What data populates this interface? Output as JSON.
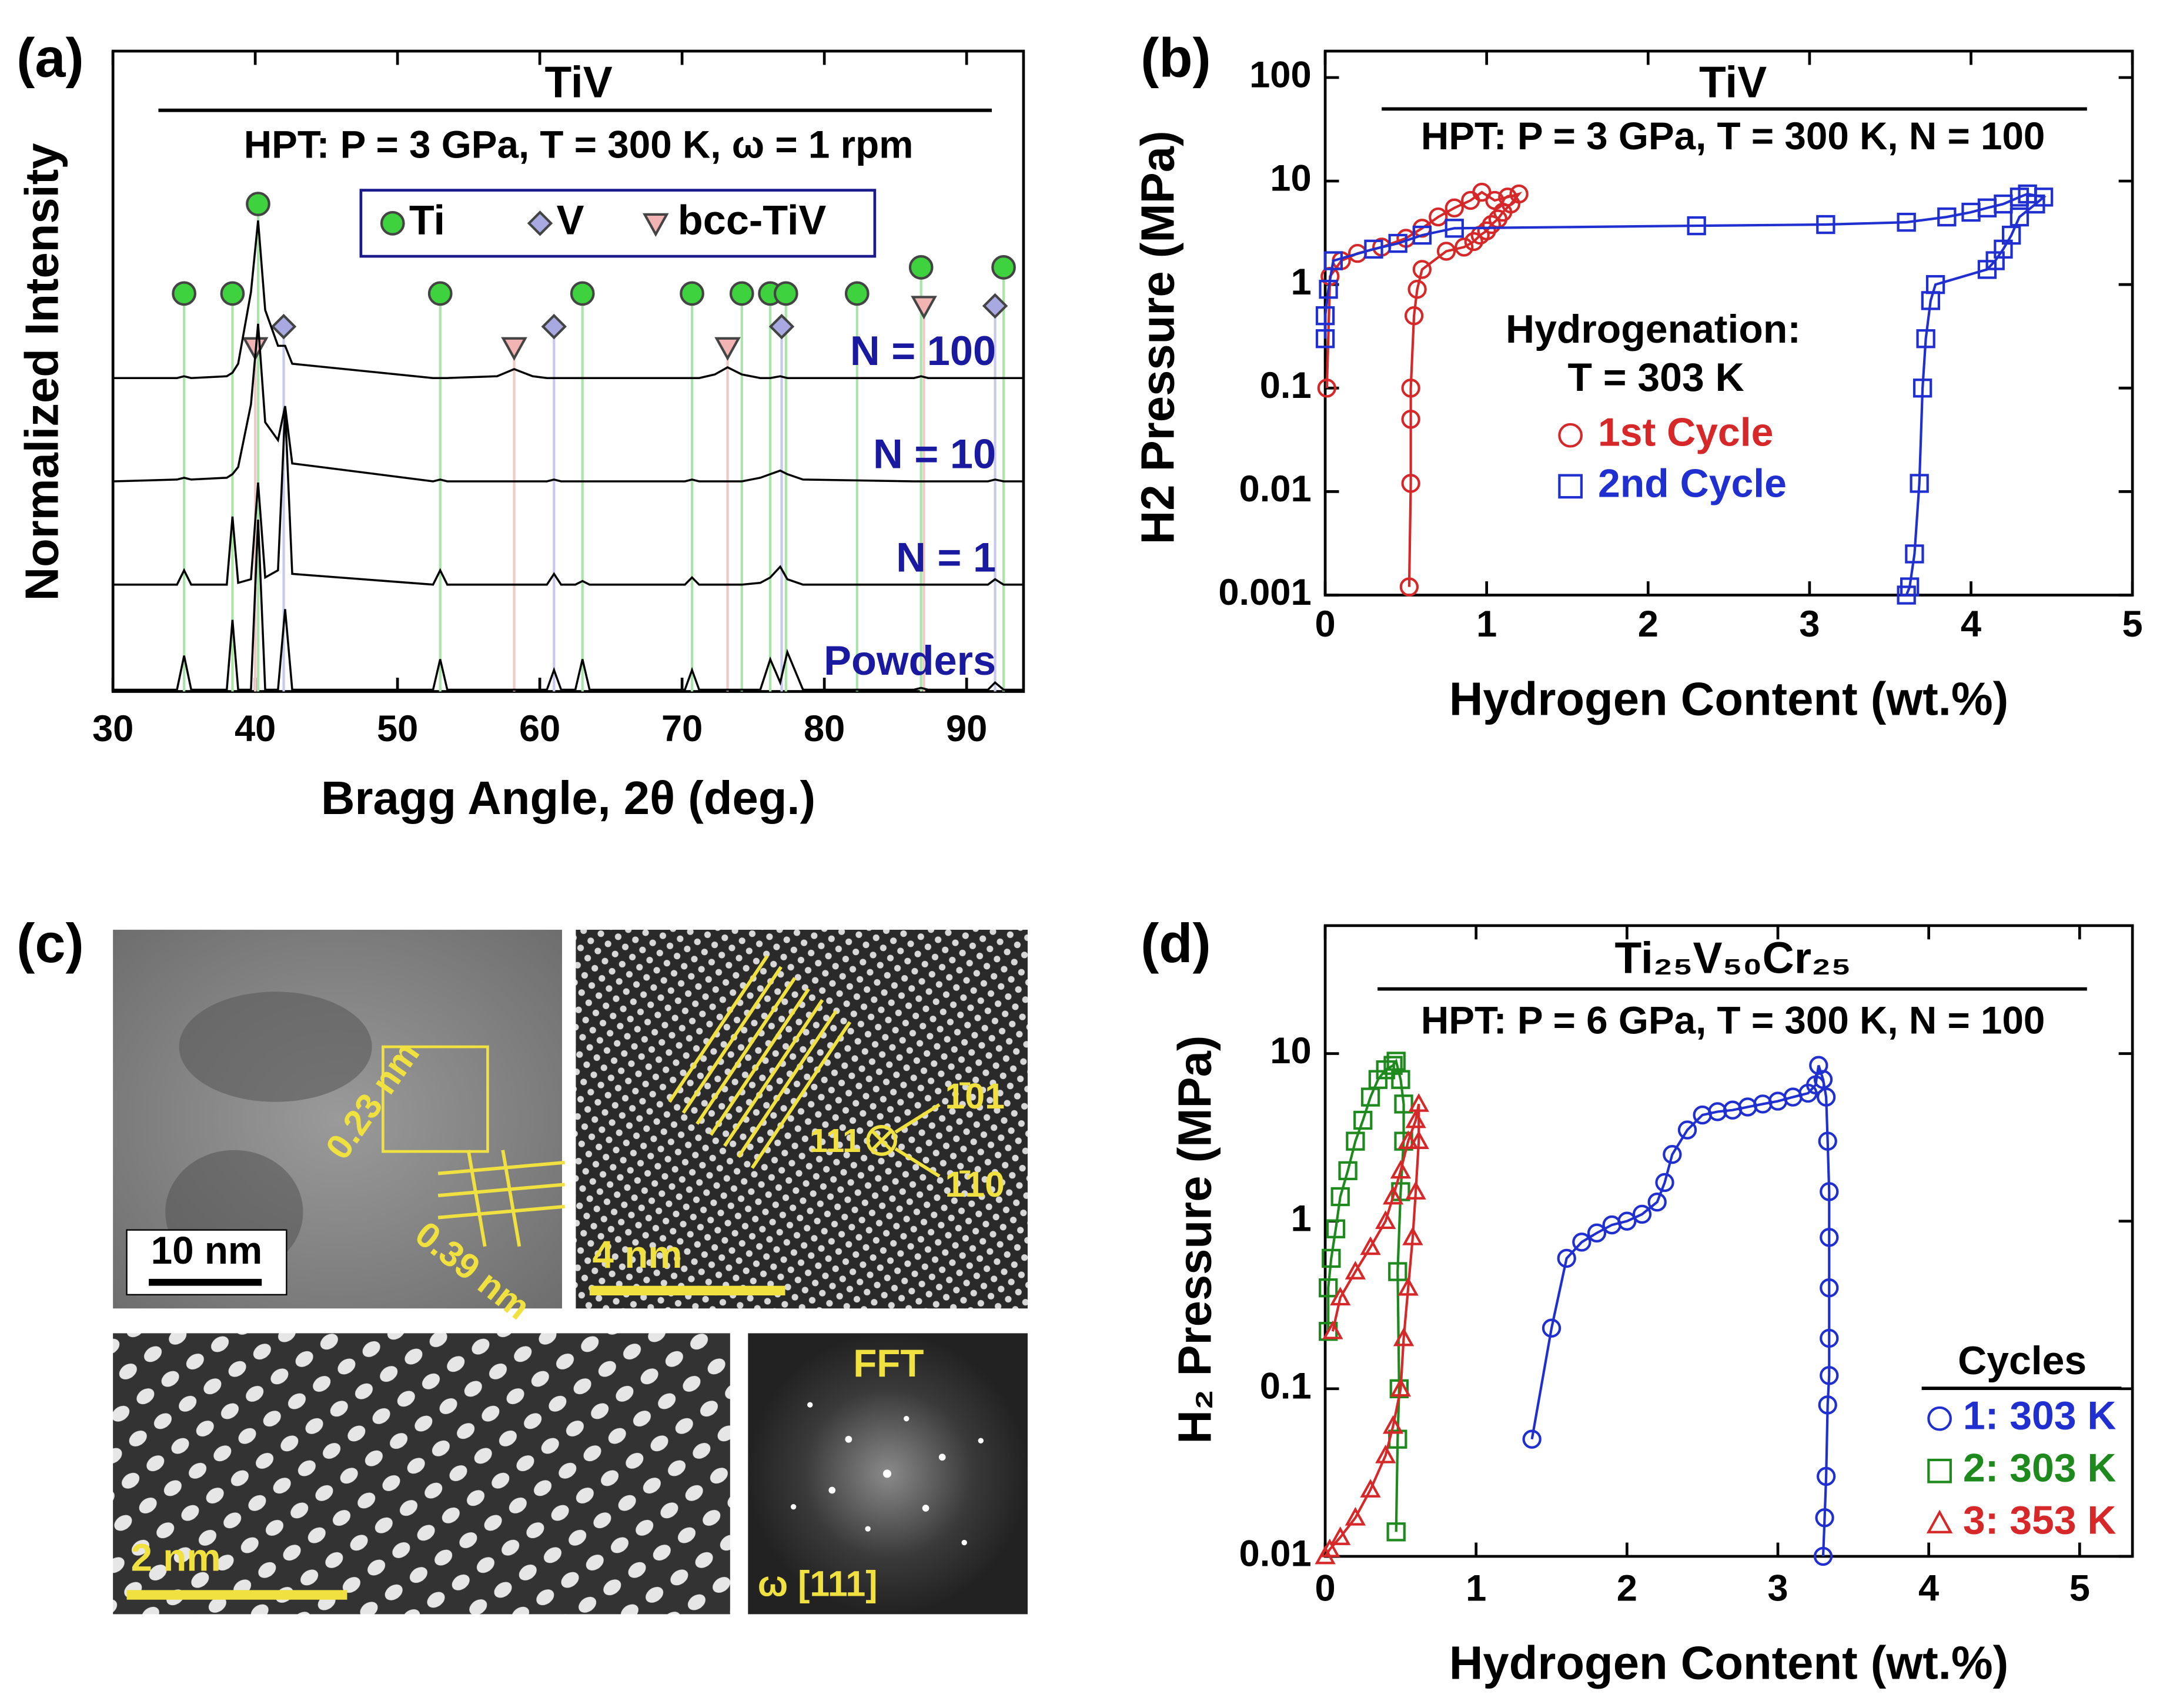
{
  "chart_data": [
    {
      "type": "line",
      "panel_label": "(a)",
      "title": "TiV",
      "subtitle": "HPT: P = 3 GPa, T = 300 K, ω = 1 rpm",
      "x_label": "Bragg Angle, 2θ (deg.)",
      "y_label": "Normalized Intensity",
      "xlim": [
        30,
        94
      ],
      "xticks": [
        30,
        40,
        50,
        60,
        70,
        80,
        90
      ],
      "ylim": [
        0,
        1
      ],
      "x": [
        30,
        34.5,
        35.0,
        35.5,
        38.0,
        38.4,
        38.8,
        39.7,
        40.2,
        40.7,
        41.6,
        42.1,
        42.6,
        52.5,
        53.0,
        53.5,
        57.0,
        58.2,
        59.5,
        60.5,
        61.0,
        61.5,
        62.5,
        63.0,
        63.5,
        70.2,
        70.7,
        71.2,
        72.3,
        73.2,
        74.2,
        75.5,
        76.2,
        76.9,
        77.4,
        78.5,
        86.3,
        86.8,
        87.3,
        91.5,
        92.0,
        92.6,
        94
      ],
      "series": [
        {
          "name": "N = 100",
          "color": "#000000",
          "label_color": "#1a1aa0",
          "values": [
            0.02,
            0.02,
            0.03,
            0.02,
            0.03,
            0.05,
            0.1,
            0.5,
            0.9,
            0.4,
            0.2,
            0.2,
            0.1,
            0.02,
            0.02,
            0.02,
            0.03,
            0.07,
            0.03,
            0.02,
            0.02,
            0.02,
            0.02,
            0.02,
            0.02,
            0.02,
            0.02,
            0.02,
            0.04,
            0.08,
            0.04,
            0.02,
            0.02,
            0.03,
            0.02,
            0.02,
            0.02,
            0.03,
            0.02,
            0.02,
            0.02,
            0.02,
            0.02
          ]
        },
        {
          "name": "N = 10",
          "color": "#000000",
          "label_color": "#1a1aa0",
          "values": [
            0.02,
            0.03,
            0.04,
            0.03,
            0.04,
            0.06,
            0.1,
            0.45,
            0.9,
            0.35,
            0.25,
            0.44,
            0.12,
            0.02,
            0.03,
            0.02,
            0.02,
            0.02,
            0.02,
            0.02,
            0.03,
            0.02,
            0.02,
            0.02,
            0.02,
            0.02,
            0.03,
            0.02,
            0.02,
            0.02,
            0.02,
            0.04,
            0.06,
            0.08,
            0.06,
            0.03,
            0.02,
            0.02,
            0.02,
            0.02,
            0.03,
            0.02,
            0.02
          ]
        },
        {
          "name": "N = 1",
          "color": "#000000",
          "label_color": "#1a1aa0",
          "values": [
            0.02,
            0.02,
            0.1,
            0.02,
            0.02,
            0.4,
            0.03,
            0.05,
            0.59,
            0.06,
            0.1,
            1.0,
            0.08,
            0.02,
            0.1,
            0.02,
            0.02,
            0.02,
            0.02,
            0.02,
            0.08,
            0.02,
            0.02,
            0.04,
            0.02,
            0.02,
            0.06,
            0.02,
            0.02,
            0.02,
            0.02,
            0.03,
            0.06,
            0.12,
            0.05,
            0.02,
            0.02,
            0.02,
            0.02,
            0.02,
            0.05,
            0.02,
            0.02
          ]
        },
        {
          "name": "Powders",
          "color": "#000000",
          "label_color": "#1a1aa0",
          "values": [
            0.01,
            0.01,
            0.2,
            0.01,
            0.01,
            0.4,
            0.01,
            0.01,
            0.96,
            0.01,
            0.01,
            0.46,
            0.01,
            0.01,
            0.18,
            0.01,
            0.01,
            0.01,
            0.01,
            0.01,
            0.12,
            0.01,
            0.01,
            0.18,
            0.01,
            0.01,
            0.12,
            0.01,
            0.01,
            0.01,
            0.01,
            0.01,
            0.18,
            0.05,
            0.22,
            0.01,
            0.01,
            0.02,
            0.01,
            0.01,
            0.05,
            0.01,
            0.01
          ]
        }
      ],
      "reference_peaks": [
        {
          "name": "Ti",
          "marker": "circle",
          "color": "#3fd23f",
          "line_color": "#a9e5a9",
          "positions": [
            35.0,
            38.4,
            40.2,
            53.0,
            63.0,
            70.7,
            74.2,
            76.2,
            77.3,
            82.3,
            86.8,
            92.6
          ]
        },
        {
          "name": "V",
          "marker": "diamond",
          "color": "#a7a9e0",
          "line_color": "#c6c8ee",
          "positions": [
            42.0,
            61.0,
            77.0,
            92.0
          ]
        },
        {
          "name": "bcc-TiV",
          "marker": "triangle",
          "color": "#f2b3b3",
          "line_color": "#f0c8c8",
          "positions": [
            40.0,
            58.2,
            73.2,
            87.0
          ]
        }
      ]
    },
    {
      "type": "line",
      "panel_label": "(b)",
      "title": "TiV",
      "subtitle": "HPT: P = 3 GPa, T = 300 K, N = 100",
      "x_label": "Hydrogen Content (wt.%)",
      "y_label": "H2 Pressure (MPa)",
      "xlim": [
        0,
        5
      ],
      "xticks": [
        0,
        1,
        2,
        3,
        4,
        5
      ],
      "ylim": [
        0.001,
        180
      ],
      "yticks": [
        0.001,
        0.01,
        0.1,
        1,
        10,
        100
      ],
      "log_scale": "y",
      "annotations": [
        "Hydrogenation:",
        "T = 303 K"
      ],
      "series": [
        {
          "name": "1st Cycle",
          "color": "#d62828",
          "marker": "circle",
          "x": [
            0.01,
            0.03,
            0.1,
            0.2,
            0.35,
            0.5,
            0.6,
            0.7,
            0.8,
            0.9,
            0.97,
            1.05,
            1.13,
            1.2,
            1.15,
            1.1,
            1.07,
            1.03,
            1.0,
            0.96,
            0.92,
            0.86,
            0.75,
            0.6,
            0.57,
            0.55,
            0.53,
            0.53,
            0.53,
            0.52
          ],
          "values": [
            0.1,
            1.2,
            1.7,
            2.0,
            2.3,
            2.8,
            3.5,
            4.5,
            5.5,
            6.5,
            7.8,
            6.5,
            7,
            7.5,
            6,
            5,
            4.3,
            3.8,
            3.3,
            3,
            2.6,
            2.3,
            2.1,
            1.4,
            0.9,
            0.5,
            0.1,
            0.05,
            0.012,
            0.0012
          ]
        },
        {
          "name": "2nd Cycle",
          "color": "#1f2fd0",
          "marker": "square",
          "x": [
            0,
            0,
            0.02,
            0.05,
            0.3,
            0.45,
            0.6,
            0.8,
            2.3,
            3.1,
            3.6,
            3.85,
            4.0,
            4.1,
            4.2,
            4.3,
            4.35,
            4.45,
            4.4,
            4.3,
            4.25,
            4.2,
            4.15,
            4.1,
            3.78,
            3.75,
            3.72,
            3.7,
            3.68,
            3.65,
            3.62,
            3.6
          ],
          "values": [
            0.3,
            0.5,
            0.9,
            1.7,
            2.2,
            2.5,
            3,
            3.5,
            3.7,
            3.8,
            4,
            4.5,
            5,
            5.5,
            6,
            7,
            7.5,
            7,
            6,
            4.5,
            3,
            2.2,
            1.7,
            1.4,
            1.0,
            0.7,
            0.3,
            0.1,
            0.012,
            0.0025,
            0.0012,
            0.001
          ]
        }
      ]
    },
    {
      "type": "line",
      "panel_label": "(d)",
      "title": "Ti₂₅V₅₀Cr₂₅",
      "subtitle": "HPT: P = 6 GPa, T = 300 K, N = 100",
      "x_label": "Hydrogen Content (wt.%)",
      "y_label": "H₂ Pressure (MPa)",
      "xlim": [
        0,
        5.35
      ],
      "xticks": [
        0,
        1,
        2,
        3,
        4,
        5
      ],
      "ylim": [
        0.01,
        58
      ],
      "yticks": [
        0.01,
        0.1,
        1,
        10
      ],
      "log_scale": "y",
      "legend_title": "Cycles",
      "series": [
        {
          "name": "1: 303 K",
          "color": "#1f2fd0",
          "marker": "circle",
          "x": [
            1.37,
            1.5,
            1.6,
            1.7,
            1.8,
            1.9,
            2.0,
            2.1,
            2.2,
            2.25,
            2.3,
            2.4,
            2.5,
            2.6,
            2.7,
            2.8,
            2.9,
            3.0,
            3.1,
            3.2,
            3.25,
            3.27,
            3.3,
            3.32,
            3.33,
            3.34,
            3.34,
            3.34,
            3.34,
            3.34,
            3.33,
            3.32,
            3.31,
            3.3
          ],
          "values": [
            0.05,
            0.23,
            0.6,
            0.75,
            0.85,
            0.95,
            1.0,
            1.1,
            1.3,
            1.7,
            2.5,
            3.5,
            4.3,
            4.5,
            4.6,
            4.8,
            5.0,
            5.2,
            5.5,
            5.8,
            6.5,
            8.5,
            7,
            5.5,
            3,
            1.5,
            0.8,
            0.4,
            0.2,
            0.12,
            0.08,
            0.03,
            0.017,
            0.01
          ]
        },
        {
          "name": "2: 303 K",
          "color": "#1e8a1e",
          "marker": "square",
          "x": [
            0.02,
            0.02,
            0.04,
            0.07,
            0.1,
            0.15,
            0.2,
            0.25,
            0.3,
            0.35,
            0.4,
            0.45,
            0.47,
            0.5,
            0.52,
            0.52,
            0.5,
            0.48,
            0.49,
            0.48,
            0.47
          ],
          "values": [
            0.22,
            0.4,
            0.6,
            0.9,
            1.4,
            2,
            3,
            4,
            5.5,
            7,
            8,
            8.5,
            9,
            7,
            5,
            3,
            1.5,
            0.5,
            0.1,
            0.05,
            0.014
          ]
        },
        {
          "name": "3: 353 K",
          "color": "#d62828",
          "marker": "triangle",
          "x": [
            0.05,
            0.1,
            0.2,
            0.3,
            0.4,
            0.45,
            0.5,
            0.55,
            0.6,
            0.62,
            0.62,
            0.6,
            0.58,
            0.55,
            0.52,
            0.5,
            0.45,
            0.4,
            0.3,
            0.2,
            0.1,
            0.03,
            0.0
          ],
          "values": [
            0.22,
            0.35,
            0.5,
            0.7,
            1,
            1.4,
            2,
            3,
            4,
            5,
            3,
            1.5,
            0.8,
            0.4,
            0.2,
            0.1,
            0.06,
            0.04,
            0.025,
            0.017,
            0.013,
            0.011,
            0.01
          ]
        }
      ]
    }
  ],
  "micrographs": {
    "panel_label": "(c)",
    "scale_bars": [
      "10 nm",
      "4 nm",
      "2 nm"
    ],
    "zone_axis": "111",
    "directions": [
      "1̄01",
      "1̄10"
    ],
    "spacings": [
      "0.23 nm",
      "0.39 nm"
    ],
    "fft_label": "FFT",
    "fft_zone": "ω [111]"
  }
}
